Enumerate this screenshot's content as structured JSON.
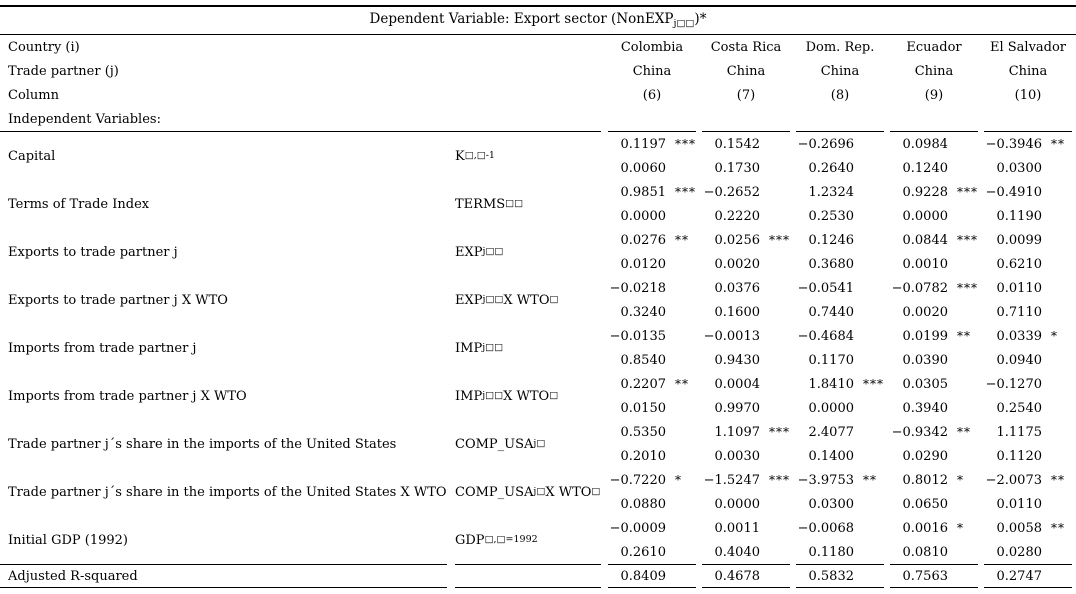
{
  "colors": {
    "text": "#000000",
    "background": "#ffffff",
    "rule": "#000000"
  },
  "title": {
    "prefix": "Dependent Variable: Export sector (NonEXP",
    "sub": "j□□",
    "suffix": ")*"
  },
  "header": {
    "country_label": "Country (i)",
    "partner_label": "Trade partner (j)",
    "column_label": "Column",
    "indep_label": "Independent Variables:",
    "columns": [
      {
        "country": "Colombia",
        "partner": "China",
        "num": "(6)"
      },
      {
        "country": "Costa Rica",
        "partner": "China",
        "num": "(7)"
      },
      {
        "country": "Dom. Rep.",
        "partner": "China",
        "num": "(8)"
      },
      {
        "country": "Ecuador",
        "partner": "China",
        "num": "(9)"
      },
      {
        "country": "El Salvador",
        "partner": "China",
        "num": "(10)"
      }
    ]
  },
  "rows": [
    {
      "label": "Capital",
      "symbol": {
        "b1": "K",
        "s1": "□,□-1"
      },
      "cells": [
        {
          "coef": "0.1197",
          "stars": "***",
          "p": "0.0060"
        },
        {
          "coef": "0.1542",
          "stars": "",
          "p": "0.1730"
        },
        {
          "coef": "−0.2696",
          "stars": "",
          "p": "0.2640"
        },
        {
          "coef": "0.0984",
          "stars": "",
          "p": "0.1240"
        },
        {
          "coef": "−0.3946",
          "stars": "**",
          "p": "0.0300"
        }
      ]
    },
    {
      "label": "Terms of Trade Index",
      "symbol": {
        "b1": "TERMS",
        "s1": "□□"
      },
      "cells": [
        {
          "coef": "0.9851",
          "stars": "***",
          "p": "0.0000"
        },
        {
          "coef": "−0.2652",
          "stars": "",
          "p": "0.2220"
        },
        {
          "coef": "1.2324",
          "stars": "",
          "p": "0.2530"
        },
        {
          "coef": "0.9228",
          "stars": "***",
          "p": "0.0000"
        },
        {
          "coef": "−0.4910",
          "stars": "",
          "p": "0.1190"
        }
      ]
    },
    {
      "label": "Exports to trade partner j",
      "symbol": {
        "b1": "EXP",
        "s1": "j□□"
      },
      "cells": [
        {
          "coef": "0.0276",
          "stars": "**",
          "p": "0.0120"
        },
        {
          "coef": "0.0256",
          "stars": "***",
          "p": "0.0020"
        },
        {
          "coef": "0.1246",
          "stars": "",
          "p": "0.3680"
        },
        {
          "coef": "0.0844",
          "stars": "***",
          "p": "0.0010"
        },
        {
          "coef": "0.0099",
          "stars": "",
          "p": "0.6210"
        }
      ]
    },
    {
      "label": "Exports to trade partner j X WTO",
      "symbol": {
        "b1": "EXP",
        "s1": "j□□",
        "b2": " X WTO",
        "s2": "□"
      },
      "cells": [
        {
          "coef": "−0.0218",
          "stars": "",
          "p": "0.3240"
        },
        {
          "coef": "0.0376",
          "stars": "",
          "p": "0.1600"
        },
        {
          "coef": "−0.0541",
          "stars": "",
          "p": "0.7440"
        },
        {
          "coef": "−0.0782",
          "stars": "***",
          "p": "0.0020"
        },
        {
          "coef": "0.0110",
          "stars": "",
          "p": "0.7110"
        }
      ]
    },
    {
      "label": "Imports from trade partner j",
      "symbol": {
        "b1": "IMP",
        "s1": "j□□"
      },
      "cells": [
        {
          "coef": "−0.0135",
          "stars": "",
          "p": "0.8540"
        },
        {
          "coef": "−0.0013",
          "stars": "",
          "p": "0.9430"
        },
        {
          "coef": "−0.4684",
          "stars": "",
          "p": "0.1170"
        },
        {
          "coef": "0.0199",
          "stars": "**",
          "p": "0.0390"
        },
        {
          "coef": "0.0339",
          "stars": "*",
          "p": "0.0940"
        }
      ]
    },
    {
      "label": "Imports from trade partner j X WTO",
      "symbol": {
        "b1": "IMP",
        "s1": "j□□",
        "b2": " X WTO",
        "s2": "□"
      },
      "cells": [
        {
          "coef": "0.2207",
          "stars": "**",
          "p": "0.0150"
        },
        {
          "coef": "0.0004",
          "stars": "",
          "p": "0.9970"
        },
        {
          "coef": "1.8410",
          "stars": "***",
          "p": "0.0000"
        },
        {
          "coef": "0.0305",
          "stars": "",
          "p": "0.3940"
        },
        {
          "coef": "−0.1270",
          "stars": "",
          "p": "0.2540"
        }
      ]
    },
    {
      "label": "Trade partner j´s share in the imports of the United States",
      "symbol": {
        "b1": "COMP_USA",
        "s1": "j□"
      },
      "cells": [
        {
          "coef": "0.5350",
          "stars": "",
          "p": "0.2010"
        },
        {
          "coef": "1.1097",
          "stars": "***",
          "p": "0.0030"
        },
        {
          "coef": "2.4077",
          "stars": "",
          "p": "0.1400"
        },
        {
          "coef": "−0.9342",
          "stars": "**",
          "p": "0.0290"
        },
        {
          "coef": "1.1175",
          "stars": "",
          "p": "0.1120"
        }
      ]
    },
    {
      "label": "Trade partner j´s share in the imports of the United States X WTO",
      "symbol": {
        "b1": "COMP_USA",
        "s1": "j□",
        "b2": " X WTO",
        "s2": "□"
      },
      "cells": [
        {
          "coef": "−0.7220",
          "stars": "*",
          "p": "0.0880"
        },
        {
          "coef": "−1.5247",
          "stars": "***",
          "p": "0.0000"
        },
        {
          "coef": "−3.9753",
          "stars": "**",
          "p": "0.0300"
        },
        {
          "coef": "0.8012",
          "stars": "*",
          "p": "0.0650"
        },
        {
          "coef": "−2.0073",
          "stars": "**",
          "p": "0.0110"
        }
      ]
    },
    {
      "label": "Initial GDP (1992)",
      "symbol": {
        "b1": "GDP",
        "s1": "□,□=1992"
      },
      "cells": [
        {
          "coef": "−0.0009",
          "stars": "",
          "p": "0.2610"
        },
        {
          "coef": "0.0011",
          "stars": "",
          "p": "0.4040"
        },
        {
          "coef": "−0.0068",
          "stars": "",
          "p": "0.1180"
        },
        {
          "coef": "0.0016",
          "stars": "*",
          "p": "0.0810"
        },
        {
          "coef": "0.0058",
          "stars": "**",
          "p": "0.0280"
        }
      ]
    }
  ],
  "footer": {
    "label": "Adjusted R-squared",
    "values": [
      "0.8409",
      "0.4678",
      "0.5832",
      "0.7563",
      "0.2747"
    ]
  }
}
